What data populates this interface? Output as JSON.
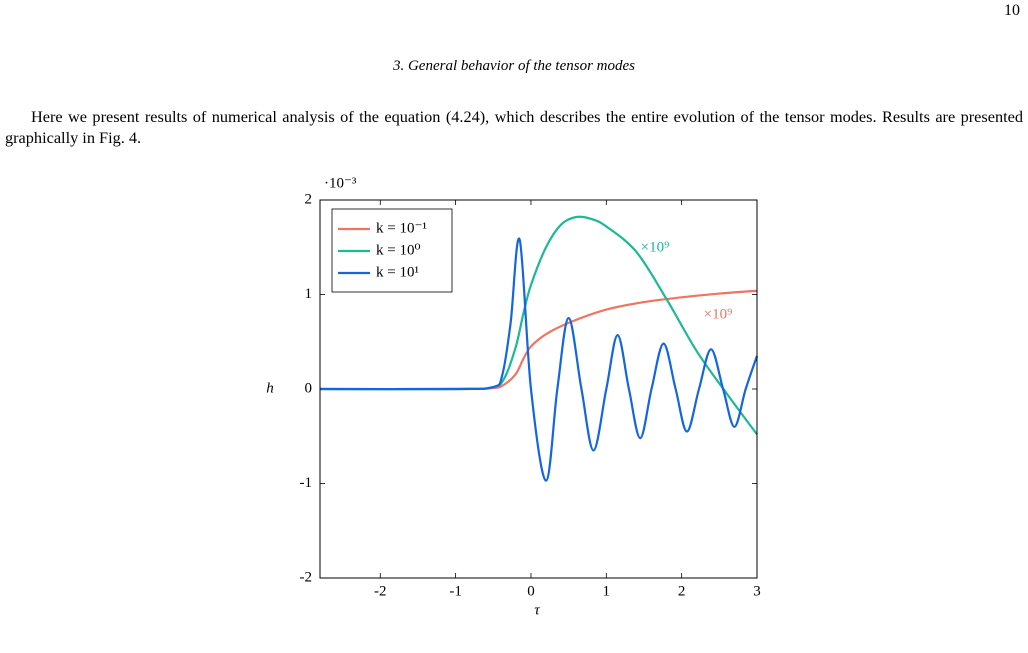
{
  "page_number": "10",
  "section_heading": "3.   General behavior of the tensor modes",
  "paragraph": "Here we present results of numerical analysis of the equation (4.24), which describes the entire evolution of the tensor modes. Results are presented graphically in Fig. 4.",
  "chart_data": {
    "type": "line",
    "x_label": "τ",
    "y_label": "h",
    "y_multiplier": "·10⁻³",
    "xlim": [
      -2.8,
      3
    ],
    "xticks": [
      -2,
      -1,
      0,
      1,
      2,
      3
    ],
    "ylim": [
      -2,
      2
    ],
    "yticks": [
      -2,
      -1,
      0,
      1,
      2
    ],
    "legend": "top-left",
    "annotations": [
      {
        "text": "×10⁹",
        "series": 1
      },
      {
        "text": "×10⁹",
        "series": 0
      }
    ],
    "series": [
      {
        "name": "k = 10⁻¹",
        "color": "#f07462",
        "x": [
          -2.8,
          -1,
          -0.5,
          -0.35,
          -0.2,
          -0.1,
          0,
          0.2,
          0.5,
          1,
          1.5,
          2,
          2.5,
          3
        ],
        "values": [
          0,
          0,
          0.01,
          0.05,
          0.16,
          0.32,
          0.45,
          0.58,
          0.7,
          0.84,
          0.92,
          0.97,
          1.01,
          1.04
        ]
      },
      {
        "name": "k = 10⁰",
        "color": "#1db896",
        "x": [
          -2.8,
          -1,
          -0.5,
          -0.35,
          -0.2,
          -0.1,
          0,
          0.2,
          0.4,
          0.6,
          0.8,
          1,
          1.4,
          1.8,
          2.2,
          2.6,
          3
        ],
        "values": [
          0,
          0,
          0.02,
          0.12,
          0.45,
          0.8,
          1.1,
          1.5,
          1.74,
          1.82,
          1.8,
          1.72,
          1.45,
          0.95,
          0.4,
          -0.05,
          -0.48
        ]
      },
      {
        "name": "k = 10¹",
        "color": "#1466e0",
        "x": [
          -2.8,
          -1,
          -0.5,
          -0.38,
          -0.27,
          -0.15,
          0,
          0.2,
          0.35,
          0.5,
          0.67,
          0.83,
          1,
          1.15,
          1.3,
          1.45,
          1.6,
          1.76,
          1.92,
          2.07,
          2.23,
          2.39,
          2.55,
          2.7,
          2.85,
          3
        ],
        "values": [
          0,
          0,
          0.02,
          0.15,
          0.7,
          1.58,
          0,
          -0.97,
          0,
          0.75,
          0,
          -0.65,
          0,
          0.57,
          0,
          -0.52,
          0,
          0.48,
          0,
          -0.45,
          0,
          0.42,
          0,
          -0.4,
          0,
          0.35
        ]
      }
    ]
  }
}
